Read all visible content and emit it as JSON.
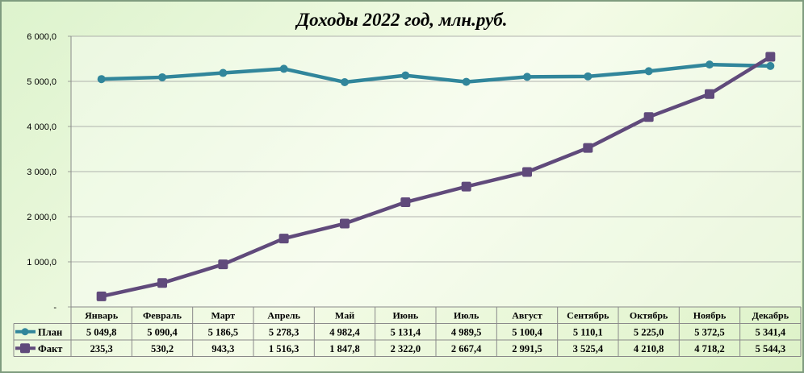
{
  "chart_data": {
    "type": "line",
    "title": "Доходы 2022 год, млн.руб.",
    "categories": [
      "Январь",
      "Февраль",
      "Март",
      "Апрель",
      "Май",
      "Июнь",
      "Июль",
      "Август",
      "Сентябрь",
      "Октябрь",
      "Ноябрь",
      "Декабрь"
    ],
    "series": [
      {
        "name": "План",
        "color": "#31869b",
        "marker": "circle",
        "values": [
          5049.8,
          5090.4,
          5186.5,
          5278.3,
          4982.4,
          5131.4,
          4989.5,
          5100.4,
          5110.1,
          5225.0,
          5372.5,
          5341.4
        ],
        "labels": [
          "5 049,8",
          "5 090,4",
          "5 186,5",
          "5 278,3",
          "4 982,4",
          "5 131,4",
          "4 989,5",
          "5 100,4",
          "5 110,1",
          "5 225,0",
          "5 372,5",
          "5 341,4"
        ]
      },
      {
        "name": "Факт",
        "color": "#604a7b",
        "marker": "square",
        "values": [
          235.3,
          530.2,
          943.3,
          1516.3,
          1847.8,
          2322.0,
          2667.4,
          2991.5,
          3525.4,
          4210.8,
          4718.2,
          5544.3
        ],
        "labels": [
          "235,3",
          "530,2",
          "943,3",
          "1 516,3",
          "1 847,8",
          "2 322,0",
          "2 667,4",
          "2 991,5",
          "3 525,4",
          "4 210,8",
          "4 718,2",
          "5 544,3"
        ]
      }
    ],
    "ylim": [
      0,
      6000
    ],
    "yticks": [
      0,
      1000,
      2000,
      3000,
      4000,
      5000,
      6000
    ],
    "ytick_labels": [
      "-",
      "1 000,0",
      "2 000,0",
      "3 000,0",
      "4 000,0",
      "5 000,0",
      "6 000,0"
    ],
    "grid": true,
    "legend": "data-table"
  }
}
